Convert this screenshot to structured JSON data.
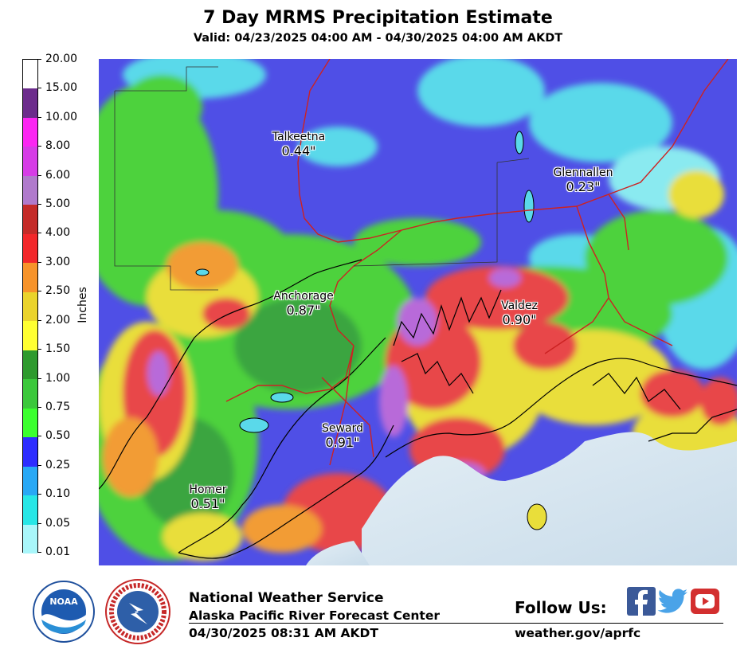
{
  "header": {
    "title": "7 Day MRMS Precipitation Estimate",
    "subtitle": "Valid: 04/23/2025 04:00 AM - 04/30/2025 04:00 AM AKDT"
  },
  "legend": {
    "units": "Inches",
    "levels": [
      "20.00",
      "15.00",
      "10.00",
      "8.00",
      "6.00",
      "5.00",
      "4.00",
      "3.00",
      "2.50",
      "2.00",
      "1.50",
      "1.00",
      "0.75",
      "0.50",
      "0.25",
      "0.10",
      "0.05",
      "0.01"
    ],
    "colors": [
      "#ffffff",
      "#6c2c8c",
      "#fb26f2",
      "#d63ce6",
      "#b07acc",
      "#c42b28",
      "#f2272a",
      "#f7932a",
      "#ead32c",
      "#ffff31",
      "#2e9a2e",
      "#3bc83b",
      "#3bff2e",
      "#2d2dff",
      "#28a8f5",
      "#27e6e6",
      "#a9f6fa"
    ]
  },
  "map": {
    "cities": [
      {
        "name": "Talkeetna",
        "value": "0.44\""
      },
      {
        "name": "Glennallen",
        "value": "0.23\""
      },
      {
        "name": "Anchorage",
        "value": "0.87\""
      },
      {
        "name": "Valdez",
        "value": "0.90\""
      },
      {
        "name": "Seward",
        "value": "0.91\""
      },
      {
        "name": "Homer",
        "value": "0.51\""
      }
    ],
    "palette": {
      "ocean": "#d6e6ef",
      "blue": "#4f4fe6",
      "cyan": "#5ad9ea",
      "green": "#4ed23d",
      "darkgreen": "#3aa540",
      "yellow": "#e9de3a",
      "orange": "#f29c35",
      "red": "#e8474a",
      "purple": "#b86ad9",
      "magenta": "#d64be6"
    }
  },
  "footer": {
    "org_name": "National Weather Service",
    "org_center": "Alaska Pacific River Forecast Center",
    "issued": "04/30/2025 08:31 AM AKDT",
    "follow_label": "Follow Us:",
    "website": "weather.gov/aprfc",
    "noaa_logo_text": "NOAA",
    "nws_logo_text": "NATIONAL WEATHER SERVICE",
    "social_icons": [
      "facebook-icon",
      "twitter-icon",
      "youtube-icon"
    ]
  }
}
